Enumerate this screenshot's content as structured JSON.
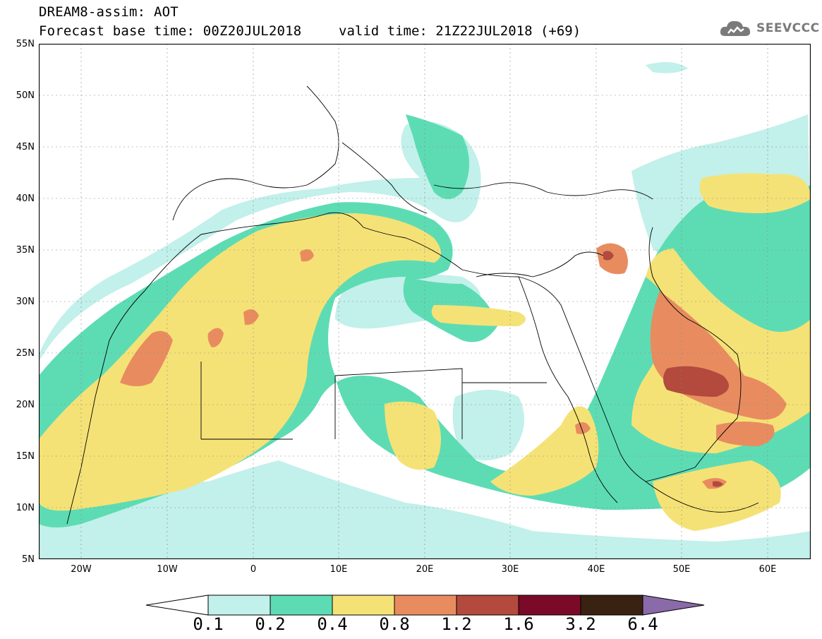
{
  "title": {
    "line1": "DREAM8-assim: AOT",
    "line2": "Forecast base time: 00Z20JUL2018",
    "valid": "valid time: 21Z22JUL2018 (+69)"
  },
  "logo": {
    "text": "SEEVCCC",
    "icon": "cloud-icon"
  },
  "map": {
    "lat_labels": [
      "55N",
      "50N",
      "45N",
      "40N",
      "35N",
      "30N",
      "25N",
      "20N",
      "15N",
      "10N",
      "5N"
    ],
    "lon_labels": [
      "20W",
      "10W",
      "0",
      "10E",
      "20E",
      "30E",
      "40E",
      "50E",
      "60E"
    ]
  },
  "colorbar": {
    "labels": [
      "0.1",
      "0.2",
      "0.4",
      "0.8",
      "1.2",
      "1.6",
      "3.2",
      "6.4"
    ],
    "colors": [
      "#ffffff",
      "#c2f0ea",
      "#5ddcb4",
      "#f5e276",
      "#e88c60",
      "#b34a3d",
      "#7a0a28",
      "#3a2212",
      "#8a6aa8"
    ]
  }
}
